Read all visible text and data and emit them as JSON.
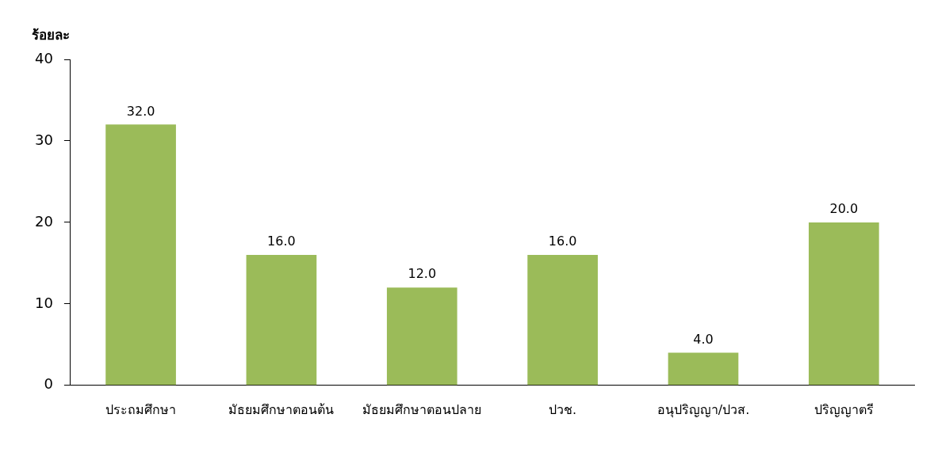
{
  "chart_data": {
    "type": "bar",
    "ylabel": "ร้อยละ",
    "categories": [
      "ประถมศึกษา",
      "มัธยมศึกษาตอนต้น",
      "มัธยมศึกษาตอนปลาย",
      "ปวช.",
      "อนุปริญญา/ปวส.",
      "ปริญญาตรี"
    ],
    "values": [
      32.0,
      16.0,
      12.0,
      16.0,
      4.0,
      20.0
    ],
    "value_labels": [
      "32.0",
      "16.0",
      "12.0",
      "16.0",
      "4.0",
      "20.0"
    ],
    "color": "#9bbb59",
    "ylim": [
      0,
      40
    ],
    "yticks": [
      0,
      10,
      20,
      30,
      40
    ],
    "grid": false,
    "legend": false
  }
}
